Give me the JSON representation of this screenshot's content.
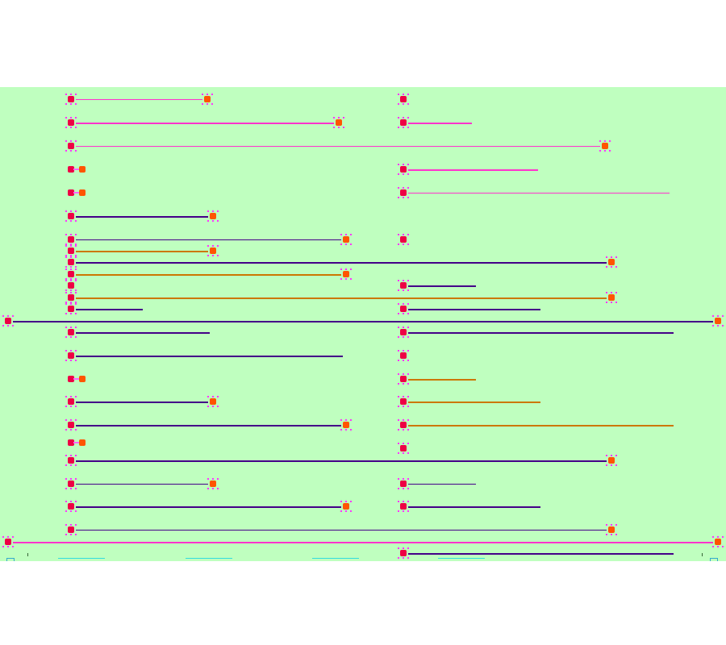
{
  "colors": {
    "background": "#bfffbf",
    "magenta": "#ff33cc",
    "indigo": "#440088",
    "orange": "#cc7700",
    "node_red": "#ee0044",
    "node_orange": "#ff5500",
    "dot": "#ff33ff"
  },
  "icons": {
    "start": "left-arrow-node-icon",
    "end": "right-arrow-node-icon",
    "empty": "empty-pair-node-icon"
  },
  "tabs": 4
}
